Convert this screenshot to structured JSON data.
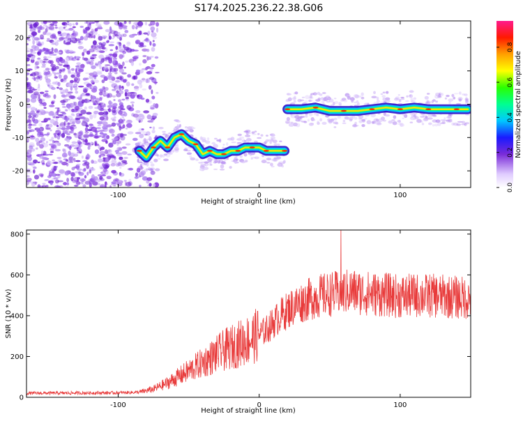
{
  "title": "S174.2025.236.22.38.G06",
  "colors": {
    "snr_line": "#e83a3a",
    "axes": "#000000",
    "background": "#ffffff"
  },
  "chart_data": [
    {
      "type": "heatmap",
      "name": "spectrogram",
      "xlabel": "Height of straight line (km)",
      "ylabel": "Frequency (Hz)",
      "xlim": [
        -165,
        150
      ],
      "ylim": [
        -25,
        25
      ],
      "xticks": [
        -100,
        0,
        100
      ],
      "yticks": [
        -20,
        -10,
        0,
        10,
        20
      ],
      "colorbar": {
        "label": "Normalized spectral amplitude",
        "range": [
          0,
          0.95
        ],
        "ticks": [
          0.0,
          0.2,
          0.4,
          0.6,
          0.8
        ]
      },
      "noise_region_x": [
        -165,
        -80
      ],
      "signal_track": [
        {
          "x": -85,
          "y": -14
        },
        {
          "x": -80,
          "y": -16
        },
        {
          "x": -75,
          "y": -13
        },
        {
          "x": -70,
          "y": -11
        },
        {
          "x": -65,
          "y": -13
        },
        {
          "x": -60,
          "y": -10
        },
        {
          "x": -55,
          "y": -9
        },
        {
          "x": -50,
          "y": -11
        },
        {
          "x": -45,
          "y": -12
        },
        {
          "x": -40,
          "y": -15
        },
        {
          "x": -35,
          "y": -14
        },
        {
          "x": -30,
          "y": -15
        },
        {
          "x": -25,
          "y": -15
        },
        {
          "x": -20,
          "y": -14
        },
        {
          "x": -15,
          "y": -14
        },
        {
          "x": -10,
          "y": -13
        },
        {
          "x": -5,
          "y": -13
        },
        {
          "x": 0,
          "y": -13
        },
        {
          "x": 5,
          "y": -14
        },
        {
          "x": 10,
          "y": -14
        },
        {
          "x": 18,
          "y": -14
        },
        {
          "x": 20,
          "y": -1.5
        },
        {
          "x": 30,
          "y": -1.5
        },
        {
          "x": 40,
          "y": -1
        },
        {
          "x": 50,
          "y": -2
        },
        {
          "x": 60,
          "y": -2
        },
        {
          "x": 70,
          "y": -2
        },
        {
          "x": 80,
          "y": -1.5
        },
        {
          "x": 90,
          "y": -1
        },
        {
          "x": 100,
          "y": -1.5
        },
        {
          "x": 110,
          "y": -1
        },
        {
          "x": 120,
          "y": -1.5
        },
        {
          "x": 130,
          "y": -1.5
        },
        {
          "x": 140,
          "y": -1.5
        },
        {
          "x": 148,
          "y": -1.5
        }
      ]
    },
    {
      "type": "line",
      "name": "snr",
      "xlabel": "Height of straight line (km)",
      "ylabel": "SNR (10 * v/v)",
      "xlim": [
        -165,
        150
      ],
      "ylim": [
        0,
        820
      ],
      "xticks": [
        -100,
        0,
        100
      ],
      "yticks": [
        0,
        200,
        400,
        600,
        800
      ],
      "envelope": [
        {
          "x": -165,
          "y": 20
        },
        {
          "x": -100,
          "y": 22
        },
        {
          "x": -85,
          "y": 25
        },
        {
          "x": -75,
          "y": 40
        },
        {
          "x": -65,
          "y": 70
        },
        {
          "x": -55,
          "y": 110
        },
        {
          "x": -45,
          "y": 150
        },
        {
          "x": -35,
          "y": 190
        },
        {
          "x": -25,
          "y": 230
        },
        {
          "x": -15,
          "y": 260
        },
        {
          "x": -5,
          "y": 290
        },
        {
          "x": 5,
          "y": 330
        },
        {
          "x": 15,
          "y": 400
        },
        {
          "x": 25,
          "y": 450
        },
        {
          "x": 35,
          "y": 480
        },
        {
          "x": 45,
          "y": 500
        },
        {
          "x": 55,
          "y": 510
        },
        {
          "x": 65,
          "y": 520
        },
        {
          "x": 75,
          "y": 510
        },
        {
          "x": 85,
          "y": 505
        },
        {
          "x": 100,
          "y": 495
        },
        {
          "x": 115,
          "y": 500
        },
        {
          "x": 130,
          "y": 495
        },
        {
          "x": 150,
          "y": 485
        }
      ],
      "peak": {
        "x": 58,
        "y": 820
      }
    }
  ]
}
